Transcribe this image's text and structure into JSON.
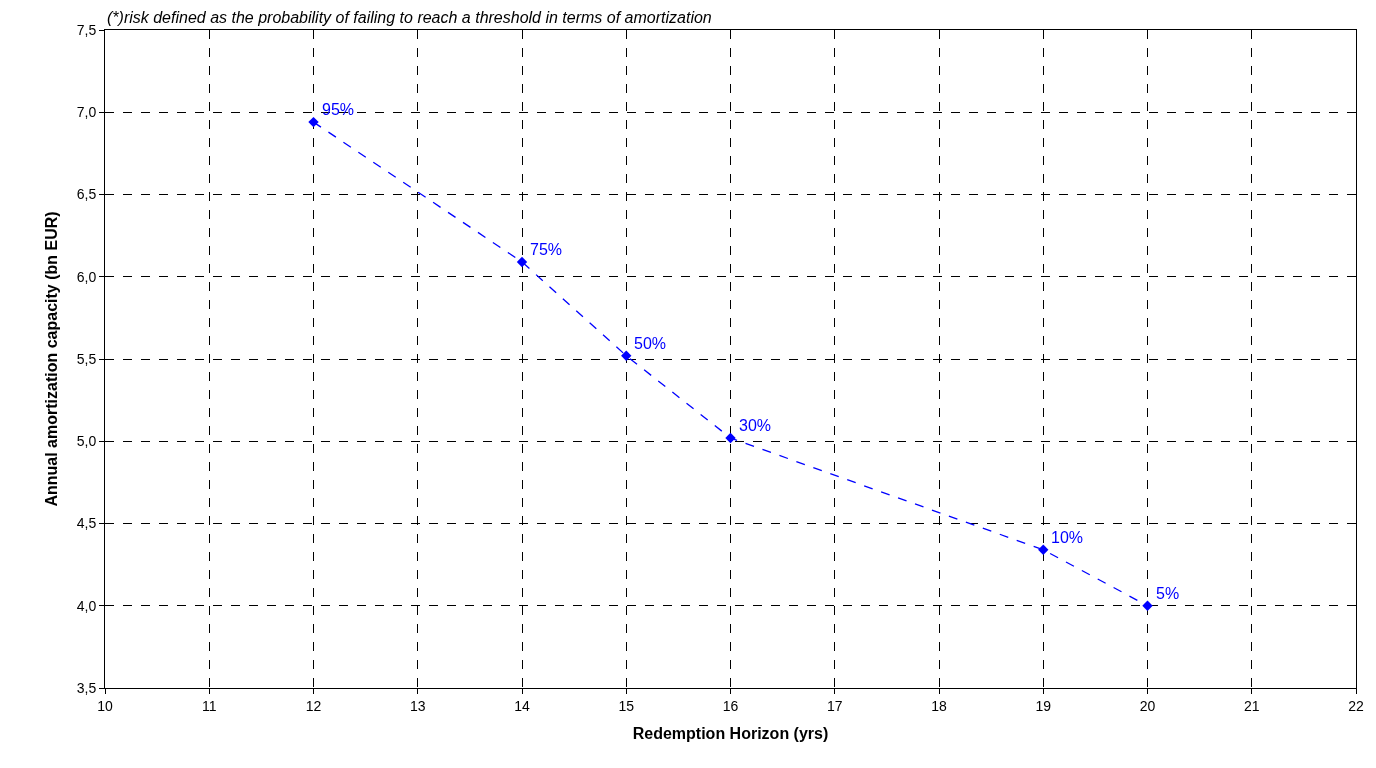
{
  "chart_data": {
    "type": "line",
    "xlabel": "Redemption Horizon (yrs)",
    "ylabel": "Annual amortization capacity (bn EUR)",
    "x": [
      12,
      14,
      15,
      16,
      19,
      20
    ],
    "series": [
      {
        "color": "#0000ff",
        "values": [
          6.94,
          6.09,
          5.52,
          5.02,
          4.34,
          4.0
        ]
      }
    ],
    "marker": "diamond",
    "line_style": "dashed",
    "grid": true,
    "xlim": [
      10,
      22
    ],
    "xticks": [
      10,
      11,
      12,
      13,
      14,
      15,
      16,
      17,
      18,
      19,
      20,
      21,
      22
    ],
    "ylim": [
      3.5,
      7.5
    ],
    "yticks": [
      {
        "value": 3.5,
        "label": "3,5"
      },
      {
        "value": 4.0,
        "label": "4,0"
      },
      {
        "value": 4.5,
        "label": "4,5"
      },
      {
        "value": 5.0,
        "label": "5,0"
      },
      {
        "value": 5.5,
        "label": "5,5"
      },
      {
        "value": 6.0,
        "label": "6,0"
      },
      {
        "value": 6.5,
        "label": "6,5"
      },
      {
        "value": 7.0,
        "label": "7,0"
      },
      {
        "value": 7.5,
        "label": "7,5"
      }
    ],
    "annotations": [
      "(*)risk defined as the probability of failing to reach a threshold in terms of amortization",
      {
        "text": "95%",
        "x": 12,
        "y": 6.94
      },
      {
        "text": "75%",
        "x": 14,
        "y": 6.09
      },
      {
        "text": "50%",
        "x": 15,
        "y": 5.52
      },
      {
        "text": "30%",
        "x": 16,
        "y": 5.02
      },
      {
        "text": "10%",
        "x": 19,
        "y": 4.34
      },
      {
        "text": "5%",
        "x": 20,
        "y": 4.0
      }
    ]
  }
}
